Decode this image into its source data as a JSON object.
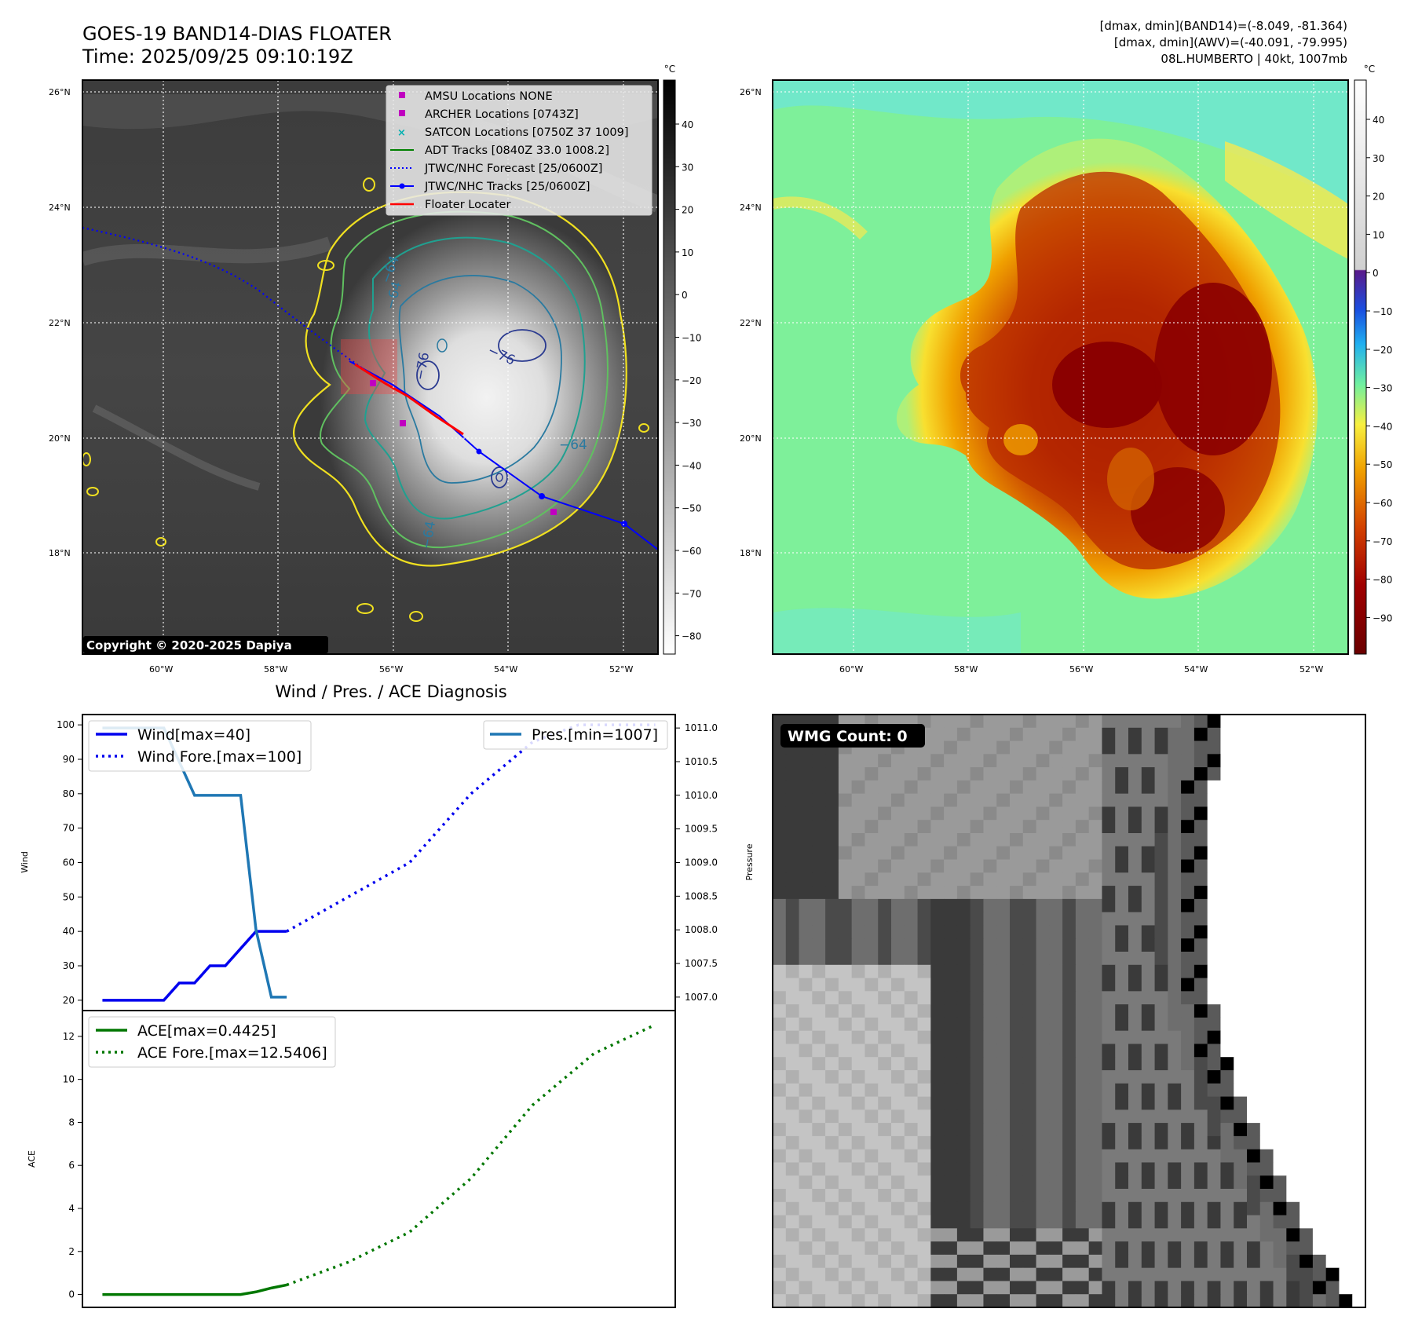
{
  "panel1": {
    "title_line1": "GOES-19 BAND14-DIAS FLOATER",
    "title_line2": "Time: 2025/09/25 09:10:19Z",
    "copyright": "Copyright © 2020-2025 Dapiya",
    "colorbar_unit": "°C",
    "colorbar_ticks": [
      "40",
      "30",
      "20",
      "10",
      "0",
      "−10",
      "−20",
      "−30",
      "−40",
      "−50",
      "−60",
      "−70",
      "−80"
    ],
    "lat_labels": [
      "26°N",
      "24°N",
      "22°N",
      "20°N",
      "18°N"
    ],
    "lon_labels": [
      "60°W",
      "58°W",
      "56°W",
      "54°W",
      "52°W"
    ],
    "contour_labels": [
      "−64",
      "−64",
      "−76",
      "−76",
      "−64",
      "−64"
    ],
    "legend": [
      {
        "label": "AMSU Locations NONE",
        "color": "#c000c0",
        "marker": "square"
      },
      {
        "label": "ARCHER Locations [0743Z]",
        "color": "#c000c0",
        "marker": "square"
      },
      {
        "label": "SATCON Locations [0750Z 37 1009]",
        "color": "#00b0b0",
        "marker": "x"
      },
      {
        "label": "ADT Tracks [0840Z 33.0 1008.2]",
        "color": "#008000",
        "marker": "line"
      },
      {
        "label": "JTWC/NHC Forecast [25/0600Z]",
        "color": "#0000ff",
        "marker": "dotted"
      },
      {
        "label": "JTWC/NHC Tracks [25/0600Z]",
        "color": "#0000ff",
        "marker": "line-dot"
      },
      {
        "label": "Floater Locater",
        "color": "#ff0000",
        "marker": "line"
      }
    ]
  },
  "panel2": {
    "info_line1": "[dmax, dmin](BAND14)=(-8.049, -81.364)",
    "info_line2": "[dmax, dmin](AWV)=(-40.091, -79.995)",
    "info_line3": "08L.HUMBERTO | 40kt, 1007mb",
    "colorbar_unit": "°C",
    "colorbar_ticks": [
      "40",
      "30",
      "20",
      "10",
      "0",
      "−10",
      "−20",
      "−30",
      "−40",
      "−50",
      "−60",
      "−70",
      "−80",
      "−90"
    ],
    "lat_labels": [
      "26°N",
      "24°N",
      "22°N",
      "20°N",
      "18°N"
    ],
    "lon_labels": [
      "60°W",
      "58°W",
      "56°W",
      "54°W",
      "52°W"
    ]
  },
  "panel4": {
    "badge": "WMG Count: 0"
  },
  "chart_data": [
    {
      "type": "line",
      "title": "Wind / Pres. / ACE Diagnosis",
      "ylabel": "Wind",
      "ylabel_right": "Pressure",
      "ylim": [
        17,
        103
      ],
      "ylim_right": [
        1006.8,
        1011.2
      ],
      "yticks": [
        20,
        30,
        40,
        50,
        60,
        70,
        80,
        90,
        100
      ],
      "yticks_right": [
        "1007.0",
        "1007.5",
        "1008.0",
        "1008.5",
        "1009.0",
        "1009.5",
        "1010.0",
        "1010.5",
        "1011.0"
      ],
      "series": [
        {
          "name": "Wind[max=40]",
          "color": "#0000ee",
          "style": "solid",
          "x": [
            0,
            1,
            2,
            3,
            4,
            5,
            6,
            7,
            8,
            9,
            10,
            11,
            12
          ],
          "y": [
            20,
            20,
            20,
            20,
            20,
            25,
            25,
            30,
            30,
            35,
            40,
            40,
            40
          ]
        },
        {
          "name": "Wind Fore.[max=100]",
          "color": "#0000ee",
          "style": "dotted",
          "x": [
            12,
            20,
            24,
            28,
            31,
            36
          ],
          "y": [
            40,
            60,
            80,
            95,
            100,
            100
          ]
        },
        {
          "name": "Pres.[min=1007]",
          "color": "#1f77b4",
          "style": "solid",
          "axis": "right",
          "x": [
            0,
            4,
            6,
            9,
            10,
            11,
            12
          ],
          "y": [
            1011,
            1011,
            1010,
            1010,
            1008,
            1007,
            1007
          ]
        }
      ]
    },
    {
      "type": "line",
      "ylabel": "ACE",
      "ylim": [
        -0.6,
        13.2
      ],
      "yticks": [
        0,
        2,
        4,
        6,
        8,
        10,
        12
      ],
      "series": [
        {
          "name": "ACE[max=0.4425]",
          "color": "#007700",
          "style": "solid",
          "x": [
            0,
            3,
            6,
            9,
            10,
            11,
            12
          ],
          "y": [
            0,
            0,
            0,
            0,
            0.12,
            0.3,
            0.4425
          ]
        },
        {
          "name": "ACE Fore.[max=12.5406]",
          "color": "#007700",
          "style": "dotted",
          "x": [
            12,
            16,
            20,
            24,
            28,
            32,
            36
          ],
          "y": [
            0.4425,
            1.5,
            2.9,
            5.4,
            8.8,
            11.2,
            12.5406
          ]
        }
      ]
    }
  ]
}
